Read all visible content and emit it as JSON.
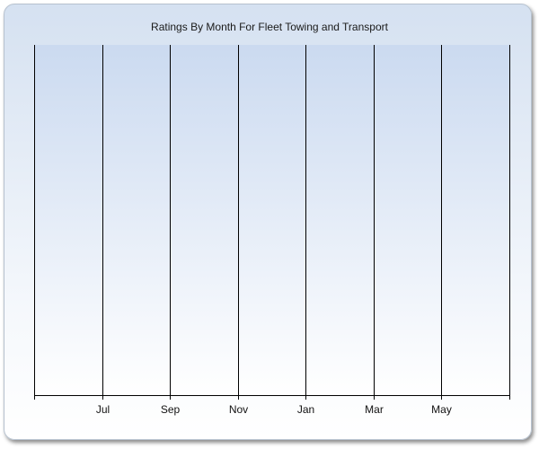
{
  "chart_data": {
    "type": "bar",
    "title": "Ratings By Month For Fleet Towing and Transport",
    "xlabel": "",
    "ylabel": "",
    "categories": [
      "Jul",
      "Sep",
      "Nov",
      "Jan",
      "Mar",
      "May"
    ],
    "series": [],
    "grid": true,
    "legend": "none",
    "colors": {
      "gridline": "#000000",
      "axis": "#000000",
      "background_top": "#cbdaf0",
      "background_bottom": "#ffffff"
    }
  }
}
